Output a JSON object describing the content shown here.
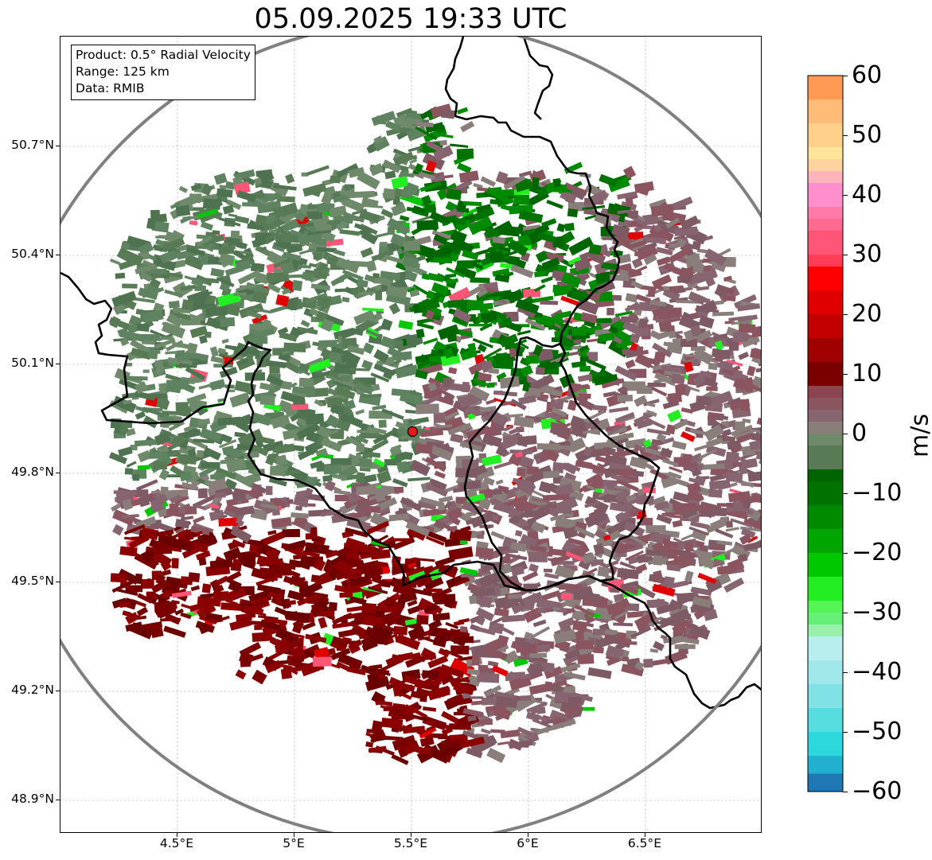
{
  "title": "05.09.2025 19:33 UTC",
  "info_box": {
    "product": "Product: 0.5° Radial Velocity",
    "range": "Range: 125 km",
    "data": "Data: RMIB"
  },
  "map": {
    "lon_range": [
      4.0,
      7.0
    ],
    "lat_range": [
      48.8,
      51.0
    ],
    "lat_ticks": [
      {
        "value": 50.7,
        "label": "50.7°N"
      },
      {
        "value": 50.4,
        "label": "50.4°N"
      },
      {
        "value": 50.1,
        "label": "50.1°N"
      },
      {
        "value": 49.8,
        "label": "49.8°N"
      },
      {
        "value": 49.5,
        "label": "49.5°N"
      },
      {
        "value": 49.2,
        "label": "49.2°N"
      },
      {
        "value": 48.9,
        "label": "48.9°N"
      }
    ],
    "lon_ticks": [
      {
        "value": 4.5,
        "label": "4.5°E"
      },
      {
        "value": 5.0,
        "label": "5°E"
      },
      {
        "value": 5.5,
        "label": "5.5°E"
      },
      {
        "value": 6.0,
        "label": "6°E"
      },
      {
        "value": 6.5,
        "label": "6.5°E"
      }
    ],
    "radar_site": {
      "lon": 5.505,
      "lat": 49.915
    },
    "range_km": 125,
    "grid": true,
    "colors": {
      "range_ring": "#808080",
      "border": "#000000",
      "radar_marker": "#e8191b",
      "grid": "#b0b0b0"
    }
  },
  "colorbar": {
    "unit": "m/s",
    "min": -60,
    "max": 60,
    "tick_labels": [
      "60",
      "50",
      "40",
      "30",
      "20",
      "10",
      "0",
      "−10",
      "−20",
      "−30",
      "−40",
      "−50",
      "−60"
    ],
    "bands": [
      {
        "from": 56,
        "to": 60,
        "color": "#ff9a55"
      },
      {
        "from": 52,
        "to": 56,
        "color": "#ffbb77"
      },
      {
        "from": 48,
        "to": 52,
        "color": "#ffd08a"
      },
      {
        "from": 46,
        "to": 48,
        "color": "#ffe59a"
      },
      {
        "from": 44,
        "to": 46,
        "color": "#ffd3a0"
      },
      {
        "from": 42,
        "to": 44,
        "color": "#ffb3bb"
      },
      {
        "from": 38,
        "to": 42,
        "color": "#ff8fcc"
      },
      {
        "from": 36,
        "to": 38,
        "color": "#ff7aa8"
      },
      {
        "from": 34,
        "to": 36,
        "color": "#ff6a90"
      },
      {
        "from": 30,
        "to": 34,
        "color": "#ff5577"
      },
      {
        "from": 28,
        "to": 30,
        "color": "#ff3d55"
      },
      {
        "from": 24,
        "to": 28,
        "color": "#ff0000"
      },
      {
        "from": 20,
        "to": 24,
        "color": "#e00000"
      },
      {
        "from": 16,
        "to": 20,
        "color": "#c30000"
      },
      {
        "from": 12,
        "to": 16,
        "color": "#a10000"
      },
      {
        "from": 8,
        "to": 12,
        "color": "#7a0000"
      },
      {
        "from": 6,
        "to": 8,
        "color": "#8b4550"
      },
      {
        "from": 4,
        "to": 6,
        "color": "#8b5560"
      },
      {
        "from": 2,
        "to": 4,
        "color": "#866470"
      },
      {
        "from": 0,
        "to": 2,
        "color": "#8a7e7b"
      },
      {
        "from": -2,
        "to": 0,
        "color": "#6f8a6a"
      },
      {
        "from": -6,
        "to": -2,
        "color": "#587b56"
      },
      {
        "from": -8,
        "to": -6,
        "color": "#006400"
      },
      {
        "from": -12,
        "to": -8,
        "color": "#007200"
      },
      {
        "from": -16,
        "to": -12,
        "color": "#008a00"
      },
      {
        "from": -20,
        "to": -16,
        "color": "#00a500"
      },
      {
        "from": -24,
        "to": -20,
        "color": "#00c800"
      },
      {
        "from": -28,
        "to": -24,
        "color": "#22ee22"
      },
      {
        "from": -30,
        "to": -28,
        "color": "#55f555"
      },
      {
        "from": -32,
        "to": -30,
        "color": "#66ee77"
      },
      {
        "from": -34,
        "to": -32,
        "color": "#99f0aa"
      },
      {
        "from": -38,
        "to": -34,
        "color": "#b8eeee"
      },
      {
        "from": -42,
        "to": -38,
        "color": "#a0e8ea"
      },
      {
        "from": -46,
        "to": -42,
        "color": "#80e2e4"
      },
      {
        "from": -50,
        "to": -46,
        "color": "#55dde0"
      },
      {
        "from": -54,
        "to": -50,
        "color": "#2cd8dc"
      },
      {
        "from": -57,
        "to": -54,
        "color": "#22b0d0"
      },
      {
        "from": -60,
        "to": -57,
        "color": "#1f77b4"
      }
    ]
  }
}
